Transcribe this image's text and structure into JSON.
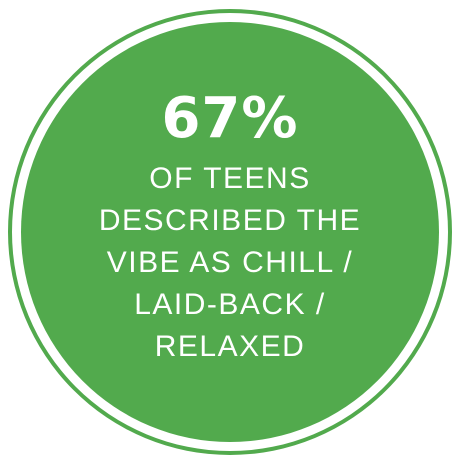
{
  "badge": {
    "stat": "67%",
    "lines": [
      "OF TEENS",
      "DESCRIBED THE",
      "VIBE AS CHILL /",
      "LAID-BACK /",
      "RELAXED"
    ]
  },
  "colors": {
    "green": "#52aa4d",
    "text": "#ffffff",
    "background": "#ffffff"
  }
}
